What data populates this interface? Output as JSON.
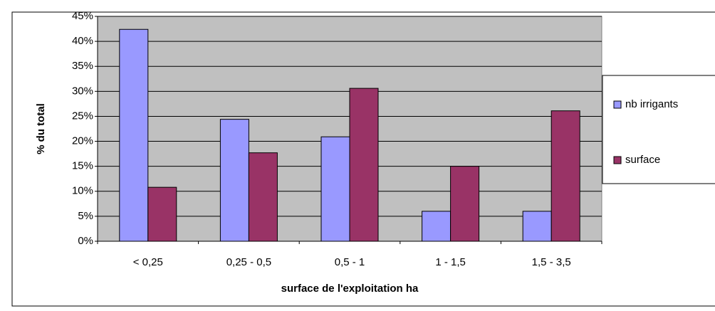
{
  "chart_data": {
    "type": "bar",
    "x_label": "surface de l'exploitation ha",
    "y_label": "% du total",
    "categories": [
      "< 0,25",
      "0,25 - 0,5",
      "0,5 - 1",
      "1 - 1,5",
      "1,5 - 3,5"
    ],
    "series": [
      {
        "name": "nb irrigants",
        "color": "#9999ff",
        "values": [
          42.4,
          24.4,
          20.9,
          6,
          6
        ]
      },
      {
        "name": "surface",
        "color": "#993366",
        "values": [
          10.8,
          17.7,
          30.6,
          15,
          26.1
        ]
      }
    ],
    "ylim": [
      0,
      45
    ],
    "yticks": [
      {
        "value": 0,
        "label": "0%"
      },
      {
        "value": 5,
        "label": "5%"
      },
      {
        "value": 10,
        "label": "10%"
      },
      {
        "value": 15,
        "label": "15%"
      },
      {
        "value": 20,
        "label": "20%"
      },
      {
        "value": 25,
        "label": "25%"
      },
      {
        "value": 30,
        "label": "30%"
      },
      {
        "value": 35,
        "label": "35%"
      },
      {
        "value": 40,
        "label": "40%"
      },
      {
        "value": 45,
        "label": "45%"
      }
    ],
    "grid": true
  }
}
